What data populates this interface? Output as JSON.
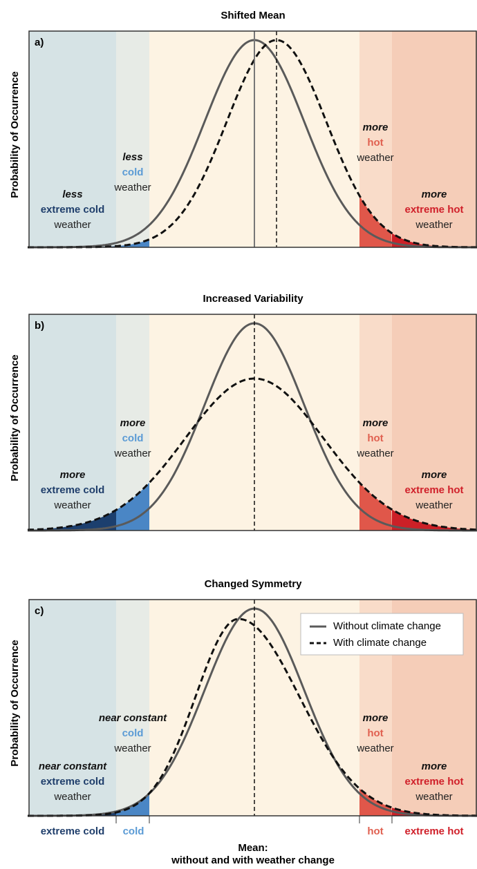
{
  "panels": [
    {
      "letter": "a)",
      "title": "Shifted Mean",
      "y_label": "Probability of Occurrence",
      "labels": [
        [
          "less",
          "extreme cold",
          "weather"
        ],
        [
          "less",
          "cold",
          "weather"
        ],
        [
          "more",
          "hot",
          "weather"
        ],
        [
          "more",
          "extreme hot",
          "weather"
        ]
      ]
    },
    {
      "letter": "b)",
      "title": "Increased Variability",
      "y_label": "Probability of Occurrence",
      "labels": [
        [
          "more",
          "extreme cold",
          "weather"
        ],
        [
          "more",
          "cold",
          "weather"
        ],
        [
          "more",
          "hot",
          "weather"
        ],
        [
          "more",
          "extreme hot",
          "weather"
        ]
      ]
    },
    {
      "letter": "c)",
      "title": "Changed Symmetry",
      "y_label": "Probability of Occurrence",
      "labels": [
        [
          "near constant",
          "extreme cold",
          "weather"
        ],
        [
          "near constant",
          "cold",
          "weather"
        ],
        [
          "more",
          "hot",
          "weather"
        ],
        [
          "more",
          "extreme hot",
          "weather"
        ]
      ]
    }
  ],
  "legend": [
    "Without climate change",
    "With climate change"
  ],
  "x_axis": {
    "bands": [
      "extreme cold",
      "cold",
      "hot",
      "extreme hot"
    ],
    "mean_label": [
      "Mean:",
      "without and with weather change"
    ]
  }
}
